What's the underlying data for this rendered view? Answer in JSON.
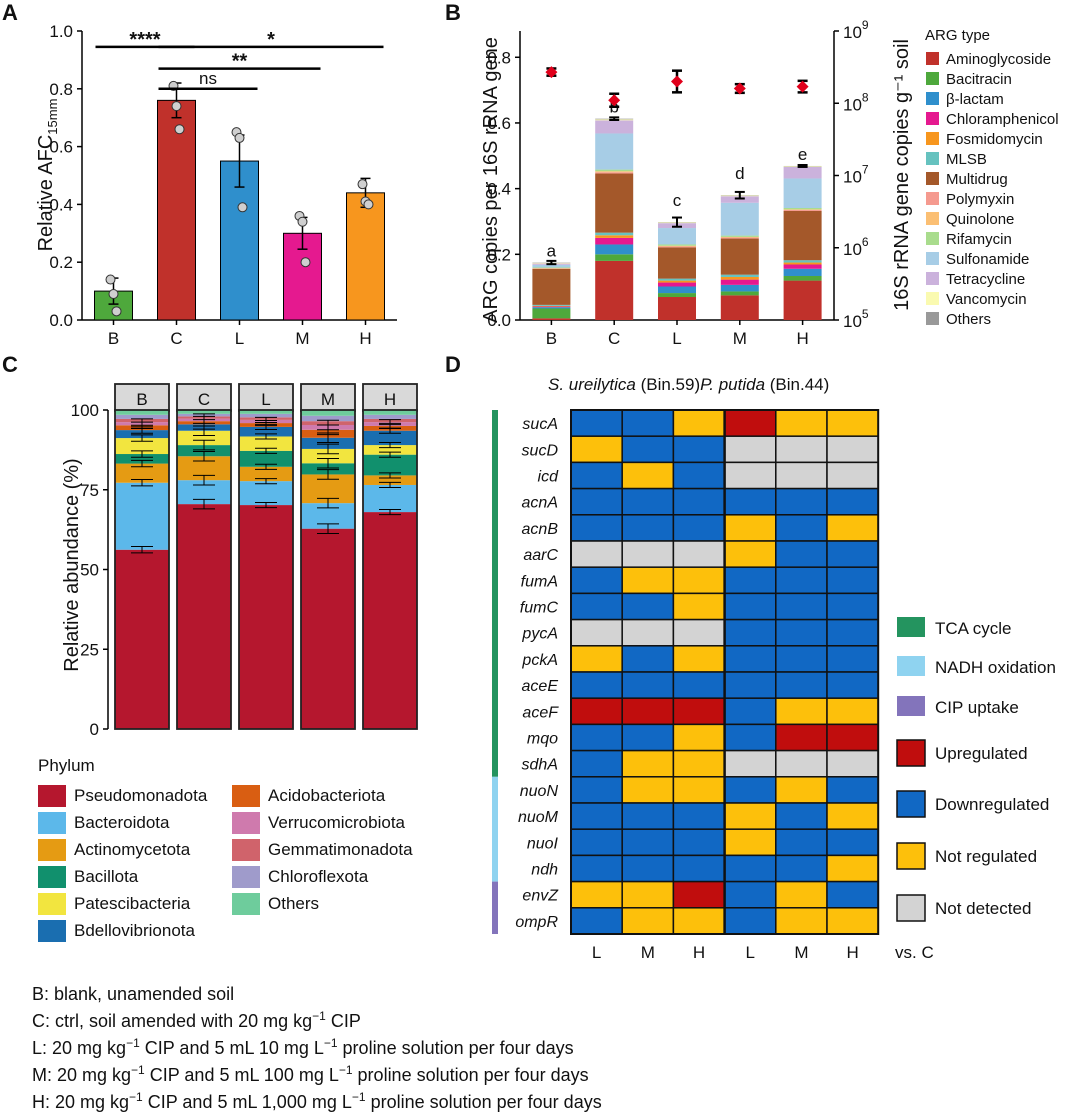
{
  "panels": {
    "A": "A",
    "B": "B",
    "C": "C",
    "D": "D"
  },
  "chart_data": [
    {
      "id": "A",
      "type": "bar",
      "categories": [
        "B",
        "C",
        "L",
        "M",
        "H"
      ],
      "values": [
        0.1,
        0.76,
        0.55,
        0.3,
        0.44
      ],
      "errors": [
        0.045,
        0.06,
        0.09,
        0.055,
        0.05
      ],
      "points": [
        [
          0.14,
          0.09,
          0.03
        ],
        [
          0.81,
          0.74,
          0.66
        ],
        [
          0.65,
          0.63,
          0.39
        ],
        [
          0.36,
          0.34,
          0.2
        ],
        [
          0.47,
          0.41,
          0.4
        ]
      ],
      "colors": [
        "#4ea83c",
        "#c0312b",
        "#2f8fcc",
        "#e5198f",
        "#f7961e"
      ],
      "ylabel": "Relative AFC",
      "ylabel_sub": "15mm",
      "ylim": [
        0,
        1.0
      ],
      "yticks": [
        "0.0",
        "0.2",
        "0.4",
        "0.6",
        "0.8",
        "1.0"
      ],
      "significance": [
        {
          "from": "B",
          "to": "C",
          "label": "****",
          "y": 0.945
        },
        {
          "from": "C",
          "to": "H",
          "label": "*",
          "y": 0.945
        },
        {
          "from": "C",
          "to": "M",
          "label": "**",
          "y": 0.87
        },
        {
          "from": "C",
          "to": "L",
          "label": "ns",
          "y": 0.8
        }
      ]
    },
    {
      "id": "B",
      "type": "bar",
      "stacked": true,
      "categories": [
        "B",
        "C",
        "L",
        "M",
        "H"
      ],
      "ylabel": "ARG copies per 16S rRNA gene",
      "y2label": "16S rRNA gene copies g⁻¹ soil",
      "ylim": [
        0,
        0.88
      ],
      "yticks": [
        "0.0",
        "0.2",
        "0.4",
        "0.6",
        "0.8"
      ],
      "y2ticks": [
        {
          "base": "10",
          "exp": "5"
        },
        {
          "base": "10",
          "exp": "6"
        },
        {
          "base": "10",
          "exp": "7"
        },
        {
          "base": "10",
          "exp": "8"
        },
        {
          "base": "10",
          "exp": "9"
        }
      ],
      "y2_scale": "log",
      "y2lim": [
        100000,
        1000000000
      ],
      "legend_title": "ARG type",
      "series": [
        {
          "name": "Aminoglycoside",
          "color": "#c0312b",
          "values": [
            0.005,
            0.18,
            0.07,
            0.075,
            0.12
          ]
        },
        {
          "name": "Bacitracin",
          "color": "#4ea83c",
          "values": [
            0.03,
            0.02,
            0.012,
            0.012,
            0.014
          ]
        },
        {
          "name": "β-lactam",
          "color": "#2f8fcc",
          "values": [
            0.004,
            0.03,
            0.02,
            0.02,
            0.022
          ]
        },
        {
          "name": "Chloramphenicol",
          "color": "#e5198f",
          "values": [
            0.002,
            0.02,
            0.012,
            0.016,
            0.013
          ]
        },
        {
          "name": "Fosmidomycin",
          "color": "#f7961e",
          "values": [
            0.002,
            0.008,
            0.006,
            0.008,
            0.006
          ]
        },
        {
          "name": "MLSB",
          "color": "#66c2bf",
          "values": [
            0.003,
            0.008,
            0.006,
            0.007,
            0.007
          ]
        },
        {
          "name": "Multidrug",
          "color": "#a4582a",
          "values": [
            0.11,
            0.18,
            0.095,
            0.11,
            0.15
          ]
        },
        {
          "name": "Polymyxin",
          "color": "#f59a8f",
          "values": [
            0.001,
            0.004,
            0.003,
            0.003,
            0.003
          ]
        },
        {
          "name": "Quinolone",
          "color": "#fbbf73",
          "values": [
            0.001,
            0.003,
            0.002,
            0.002,
            0.002
          ]
        },
        {
          "name": "Rifamycin",
          "color": "#a9dc8d",
          "values": [
            0.002,
            0.005,
            0.004,
            0.004,
            0.004
          ]
        },
        {
          "name": "Sulfonamide",
          "color": "#a7cde6",
          "values": [
            0.008,
            0.11,
            0.05,
            0.1,
            0.09
          ]
        },
        {
          "name": "Tetracycline",
          "color": "#cbb2dc",
          "values": [
            0.004,
            0.04,
            0.015,
            0.02,
            0.035
          ]
        },
        {
          "name": "Vancomycin",
          "color": "#fafab0",
          "values": [
            0.002,
            0.003,
            0.002,
            0.002,
            0.002
          ]
        },
        {
          "name": "Others",
          "color": "#999999",
          "values": [
            0.001,
            0.002,
            0.001,
            0.001,
            0.001
          ]
        }
      ],
      "totals_err": [
        0.005,
        0.004,
        0.014,
        0.01,
        0.003
      ],
      "letters": [
        "a",
        "b",
        "c",
        "d",
        "e"
      ],
      "copies_16S": [
        270000000,
        110000000,
        200000000,
        160000000,
        170000000
      ],
      "copies_16S_err_log": [
        0.05,
        0.09,
        0.15,
        0.06,
        0.08
      ]
    },
    {
      "id": "C",
      "type": "bar",
      "stacked": true,
      "categories": [
        "B",
        "C",
        "L",
        "M",
        "H"
      ],
      "ylabel": "Relative abundance (%)",
      "ylim": [
        0,
        100
      ],
      "yticks": [
        "0",
        "25",
        "50",
        "75",
        "100"
      ],
      "legend_title": "Phylum",
      "series": [
        {
          "name": "Pseudomonadota",
          "color": "#b5172e",
          "values": [
            56.2,
            70.5,
            70.2,
            62.8,
            68.0
          ]
        },
        {
          "name": "Bacteroidota",
          "color": "#5cb8ea",
          "values": [
            21.0,
            7.5,
            7.5,
            8.0,
            8.5
          ]
        },
        {
          "name": "Actinomycetota",
          "color": "#e59b13",
          "values": [
            6.0,
            7.5,
            4.5,
            9.0,
            3.0
          ]
        },
        {
          "name": "Bacillota",
          "color": "#11906d",
          "values": [
            3.0,
            3.5,
            5.0,
            3.5,
            6.5
          ]
        },
        {
          "name": "Patescibacteria",
          "color": "#f2e53f",
          "values": [
            5.0,
            4.5,
            4.5,
            4.5,
            3.0
          ]
        },
        {
          "name": "Bdellovibrionota",
          "color": "#1a6eb0",
          "values": [
            2.5,
            2.0,
            3.0,
            3.5,
            4.5
          ]
        },
        {
          "name": "Acidobacteriota",
          "color": "#d95e12",
          "values": [
            1.5,
            1.0,
            1.2,
            2.5,
            1.5
          ]
        },
        {
          "name": "Verrucomicrobiota",
          "color": "#cf7aad",
          "values": [
            1.0,
            0.8,
            1.0,
            1.5,
            1.2
          ]
        },
        {
          "name": "Gemmatimonadota",
          "color": "#d0636b",
          "values": [
            1.0,
            0.7,
            0.8,
            1.2,
            1.0
          ]
        },
        {
          "name": "Chloroflexota",
          "color": "#9f9bcb",
          "values": [
            1.3,
            0.8,
            1.1,
            1.7,
            1.3
          ]
        },
        {
          "name": "Others",
          "color": "#6ecc9c",
          "values": [
            1.5,
            1.2,
            1.2,
            1.8,
            1.5
          ]
        }
      ],
      "error_rows": [
        56,
        77,
        83,
        86,
        90,
        93,
        95,
        97
      ],
      "error_size": [
        1.0,
        1.5,
        0.8,
        1.5,
        0.8
      ]
    },
    {
      "id": "D",
      "type": "heatmap",
      "header_left": {
        "species": "S. ureilytica",
        "bin": " (Bin.59)"
      },
      "header_right": {
        "species": "P. putida",
        "bin": " (Bin.44)"
      },
      "columns": [
        "L",
        "M",
        "H",
        "L",
        "M",
        "H"
      ],
      "columns_suffix": "vs. C",
      "rows": [
        "sucA",
        "sucD",
        "icd",
        "acnA",
        "acnB",
        "aarC",
        "fumA",
        "fumC",
        "pycA",
        "pckA",
        "aceE",
        "aceF",
        "mqo",
        "sdhA",
        "nuoN",
        "nuoM",
        "nuoI",
        "ndh",
        "envZ",
        "ompR"
      ],
      "states": {
        "U": "Upregulated",
        "D": "Downregulated",
        "N": "Not regulated",
        "X": "Not detected"
      },
      "state_colors": {
        "U": "#c00d0d",
        "D": "#1168c4",
        "N": "#fdc00b",
        "X": "#d3d3d3"
      },
      "values": [
        [
          "D",
          "D",
          "N",
          "U",
          "N",
          "N"
        ],
        [
          "N",
          "D",
          "D",
          "X",
          "X",
          "X"
        ],
        [
          "D",
          "N",
          "D",
          "X",
          "X",
          "X"
        ],
        [
          "D",
          "D",
          "D",
          "D",
          "D",
          "D"
        ],
        [
          "D",
          "D",
          "D",
          "N",
          "D",
          "N"
        ],
        [
          "X",
          "X",
          "X",
          "N",
          "D",
          "D"
        ],
        [
          "D",
          "N",
          "N",
          "D",
          "D",
          "D"
        ],
        [
          "D",
          "D",
          "N",
          "D",
          "D",
          "D"
        ],
        [
          "X",
          "X",
          "X",
          "D",
          "D",
          "D"
        ],
        [
          "N",
          "D",
          "N",
          "D",
          "D",
          "D"
        ],
        [
          "D",
          "D",
          "D",
          "D",
          "D",
          "D"
        ],
        [
          "U",
          "U",
          "U",
          "D",
          "N",
          "N"
        ],
        [
          "D",
          "D",
          "N",
          "D",
          "U",
          "U"
        ],
        [
          "D",
          "N",
          "N",
          "X",
          "X",
          "X"
        ],
        [
          "D",
          "N",
          "N",
          "D",
          "N",
          "D"
        ],
        [
          "D",
          "D",
          "D",
          "N",
          "D",
          "N"
        ],
        [
          "D",
          "D",
          "D",
          "N",
          "D",
          "D"
        ],
        [
          "D",
          "D",
          "D",
          "D",
          "D",
          "N"
        ],
        [
          "N",
          "N",
          "U",
          "D",
          "N",
          "D"
        ],
        [
          "D",
          "N",
          "N",
          "D",
          "N",
          "N"
        ]
      ],
      "pathways": [
        {
          "name": "TCA cycle",
          "color": "#24945f",
          "rows": [
            0,
            13
          ]
        },
        {
          "name": "NADH oxidation",
          "color": "#8fd3f0",
          "rows": [
            14,
            17
          ]
        },
        {
          "name": "CIP uptake",
          "color": "#8374bb",
          "rows": [
            18,
            19
          ]
        }
      ]
    }
  ],
  "caption": {
    "line1": "B: blank, unamended soil",
    "line2_pre": "C: ctrl, soil amended with 20 mg kg",
    "line2_sup": "−1",
    "line2_post": " CIP",
    "line3_pre": "L: 20 mg kg",
    "line3_sup1": "−1",
    "line3_mid": " CIP and 5 mL 10 mg L",
    "line3_sup2": "−1",
    "line3_post": " proline solution per four days",
    "line4_pre": "M: 20 mg kg",
    "line4_sup1": "−1",
    "line4_mid": " CIP and 5 mL 100 mg L",
    "line4_sup2": "−1",
    "line4_post": " proline solution per four days",
    "line5_pre": "H: 20 mg kg",
    "line5_sup1": "−1",
    "line5_mid": " CIP and 5 mL 1,000 mg L",
    "line5_sup2": "−1",
    "line5_post": " proline solution per four days"
  }
}
